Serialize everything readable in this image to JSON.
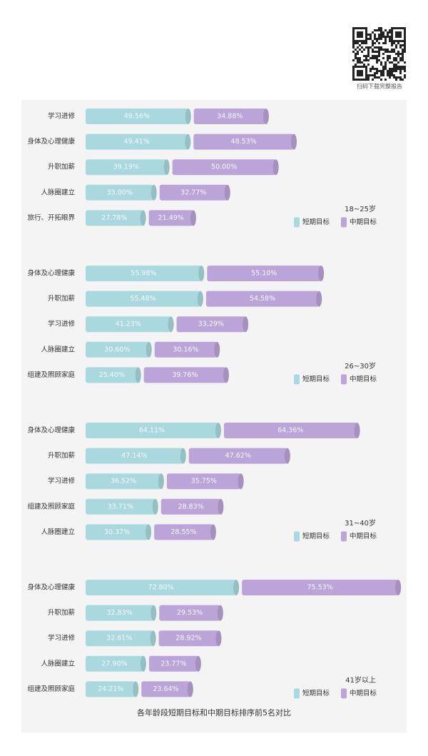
{
  "qr_caption": "扫码下载完整报告",
  "caption": "各年龄段短期目标和中期目标排序前5名对比",
  "chart_data": [
    {
      "type": "bar",
      "title": "18~25岁",
      "categories": [
        "学习进修",
        "身体及心理健康",
        "升职加薪",
        "人脉圈建立",
        "旅行、开拓眼界"
      ],
      "series": [
        {
          "name": "短期目标",
          "color": "#a9d9de",
          "values": [
            49.56,
            49.41,
            39.19,
            33.0,
            27.78
          ],
          "value_labels": [
            "49.56%",
            "49.41%",
            "39.19%",
            "33.00%",
            "27.78%"
          ]
        },
        {
          "name": "中期目标",
          "color": "#bba5d8",
          "values": [
            34.88,
            48.53,
            50.0,
            32.77,
            21.49
          ],
          "value_labels": [
            "34.88%",
            "48.53%",
            "50.00%",
            "32.77%",
            "21.49%"
          ]
        }
      ]
    },
    {
      "type": "bar",
      "title": "26~30岁",
      "categories": [
        "身体及心理健康",
        "升职加薪",
        "学习进修",
        "人脉圈建立",
        "组建及照顾家庭"
      ],
      "series": [
        {
          "name": "短期目标",
          "color": "#a9d9de",
          "values": [
            55.98,
            55.48,
            41.23,
            30.6,
            25.4
          ],
          "value_labels": [
            "55.98%",
            "55.48%",
            "41.23%",
            "30.60%",
            "25.40%"
          ]
        },
        {
          "name": "中期目标",
          "color": "#bba5d8",
          "values": [
            55.1,
            54.58,
            33.29,
            30.16,
            39.76
          ],
          "value_labels": [
            "55.10%",
            "54.58%",
            "33.29%",
            "30.16%",
            "39.76%"
          ]
        }
      ]
    },
    {
      "type": "bar",
      "title": "31~40岁",
      "categories": [
        "身体及心理健康",
        "升职加薪",
        "学习进修",
        "组建及照顾家庭",
        "人脉圈建立"
      ],
      "series": [
        {
          "name": "短期目标",
          "color": "#a9d9de",
          "values": [
            64.11,
            47.14,
            36.52,
            33.71,
            30.37
          ],
          "value_labels": [
            "64.11%",
            "47.14%",
            "36.52%",
            "33.71%",
            "30.37%"
          ]
        },
        {
          "name": "中期目标",
          "color": "#bba5d8",
          "values": [
            64.36,
            47.62,
            35.75,
            28.83,
            28.55
          ],
          "value_labels": [
            "64.36%",
            "47.62%",
            "35.75%",
            "28.83%",
            "28.55%"
          ]
        }
      ]
    },
    {
      "type": "bar",
      "title": "41岁以上",
      "categories": [
        "身体及心理健康",
        "升职加薪",
        "学习进修",
        "人脉圈建立",
        "组建及照顾家庭"
      ],
      "series": [
        {
          "name": "短期目标",
          "color": "#a9d9de",
          "values": [
            72.8,
            32.83,
            32.61,
            27.9,
            24.21
          ],
          "value_labels": [
            "72.80%",
            "32.83%",
            "32.61%",
            "27.90%",
            "24.21%"
          ]
        },
        {
          "name": "中期目标",
          "color": "#bba5d8",
          "values": [
            75.53,
            29.53,
            28.92,
            23.77,
            23.64
          ],
          "value_labels": [
            "75.53%",
            "29.53%",
            "28.92%",
            "23.77%",
            "23.64%"
          ]
        }
      ]
    }
  ]
}
